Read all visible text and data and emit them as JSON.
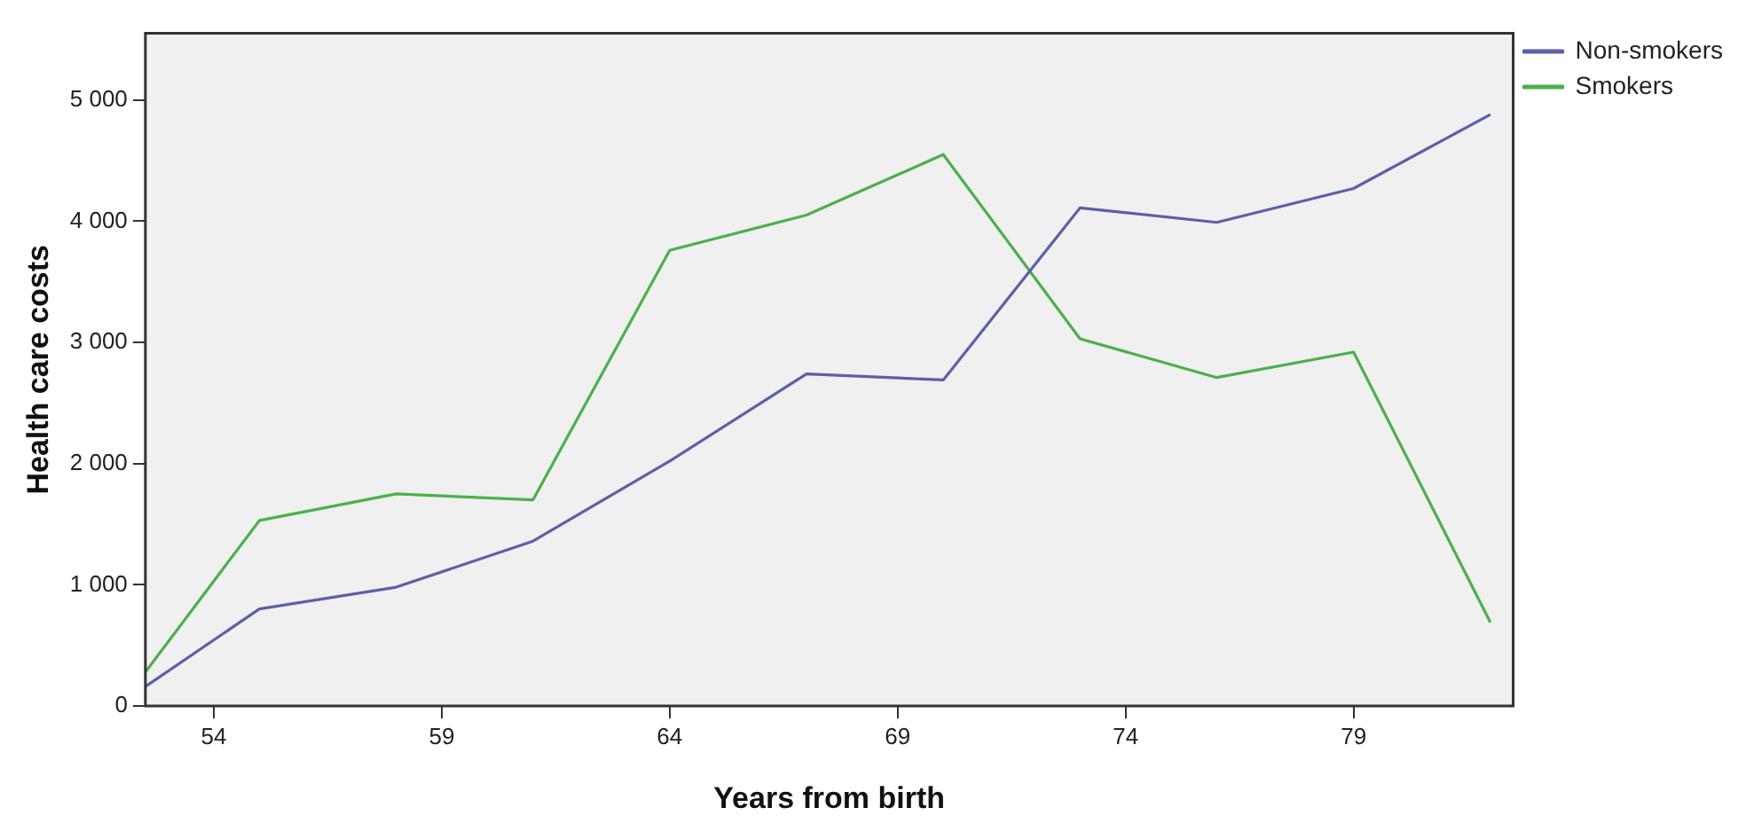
{
  "chart_data": {
    "type": "line",
    "xlabel": "Years from birth",
    "ylabel": "Health care costs",
    "x": [
      52.5,
      55,
      58,
      61,
      64,
      67,
      70,
      73,
      76,
      79,
      82
    ],
    "series": [
      {
        "name": "Non-smokers",
        "color": "#5c60a8",
        "values": [
          160,
          800,
          980,
          1360,
          2020,
          2740,
          2690,
          4110,
          3990,
          4270,
          4880
        ]
      },
      {
        "name": "Smokers",
        "color": "#4cb04c",
        "values": [
          280,
          1530,
          1750,
          1700,
          3760,
          4050,
          4550,
          3030,
          2710,
          2920,
          690
        ]
      }
    ],
    "xlim": [
      52.5,
      82.5
    ],
    "xticks": [
      54,
      59,
      64,
      69,
      74,
      79
    ],
    "ylim": [
      0,
      5550
    ],
    "yticks": [
      0,
      {
        "value": 1000,
        "label": "1 000"
      },
      {
        "value": 2000,
        "label": "2 000"
      },
      {
        "value": 3000,
        "label": "3 000"
      },
      {
        "value": 4000,
        "label": "4 000"
      },
      {
        "value": 5000,
        "label": "5 000"
      }
    ],
    "grid": false,
    "legend": "top right",
    "marker": "none",
    "line_style": "solid"
  }
}
